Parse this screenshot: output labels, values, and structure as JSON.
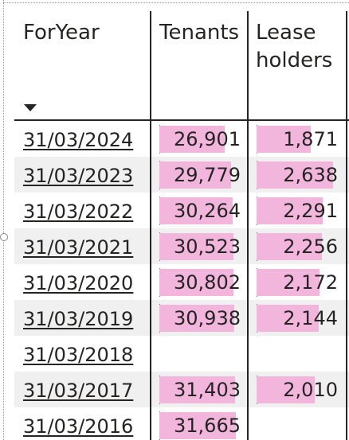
{
  "columns": {
    "year": "ForYear",
    "tenants": "Tenants",
    "lease": "Lease\nholders"
  },
  "sort_icon": "sort-descending-icon",
  "colors": {
    "bar": "#f2b5dc",
    "alt_row": "#f0f0f0",
    "text": "#252423"
  },
  "rows": [
    {
      "date": "31/03/2024",
      "tenants": "26,901",
      "tenants_value": 26901,
      "lease": "1,871",
      "lease_value": 1871
    },
    {
      "date": "31/03/2023",
      "tenants": "29,779",
      "tenants_value": 29779,
      "lease": "2,638",
      "lease_value": 2638
    },
    {
      "date": "31/03/2022",
      "tenants": "30,264",
      "tenants_value": 30264,
      "lease": "2,291",
      "lease_value": 2291
    },
    {
      "date": "31/03/2021",
      "tenants": "30,523",
      "tenants_value": 30523,
      "lease": "2,256",
      "lease_value": 2256
    },
    {
      "date": "31/03/2020",
      "tenants": "30,802",
      "tenants_value": 30802,
      "lease": "2,172",
      "lease_value": 2172
    },
    {
      "date": "31/03/2019",
      "tenants": "30,938",
      "tenants_value": 30938,
      "lease": "2,144",
      "lease_value": 2144
    },
    {
      "date": "31/03/2018",
      "tenants": "",
      "tenants_value": null,
      "lease": "",
      "lease_value": null
    },
    {
      "date": "31/03/2017",
      "tenants": "31,403",
      "tenants_value": 31403,
      "lease": "2,010",
      "lease_value": 2010
    },
    {
      "date": "31/03/2016",
      "tenants": "31,665",
      "tenants_value": 31665,
      "lease": "",
      "lease_value": null
    }
  ]
}
